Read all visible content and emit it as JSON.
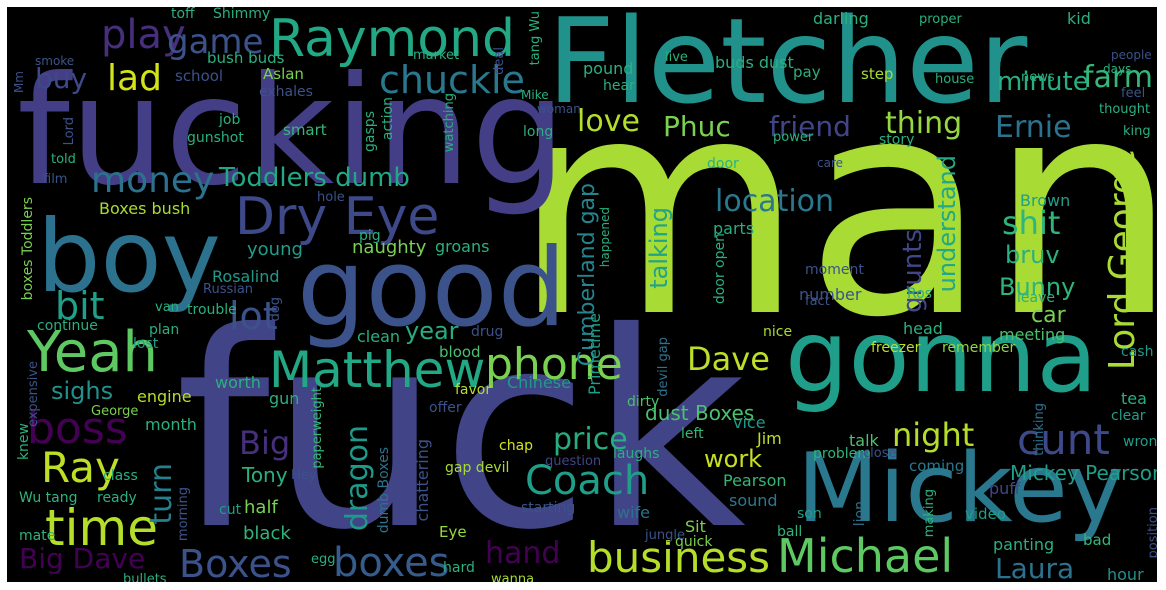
{
  "words": [
    {
      "text": "man",
      "color": "#a8db34"
    },
    {
      "text": "fuck",
      "color": "#414487"
    },
    {
      "text": "fucking",
      "color": "#433e85"
    },
    {
      "text": "Fletcher",
      "color": "#21918c"
    },
    {
      "text": "gonna",
      "color": "#1f9e89"
    },
    {
      "text": "good",
      "color": "#3b528b"
    },
    {
      "text": "boy",
      "color": "#2c728e"
    },
    {
      "text": "Mickey",
      "color": "#2a788e"
    },
    {
      "text": "Raymond",
      "color": "#22a884"
    },
    {
      "text": "Dry Eye",
      "color": "#3e4989"
    },
    {
      "text": "Yeah",
      "color": "#5ec962"
    },
    {
      "text": "Matthew",
      "color": "#22a884"
    },
    {
      "text": "Michael",
      "color": "#5ec962"
    },
    {
      "text": "time",
      "color": "#b5de2b"
    },
    {
      "text": "Coach",
      "color": "#1f9e89"
    },
    {
      "text": "business",
      "color": "#b5de2b"
    },
    {
      "text": "Boxes",
      "color": "#3b528b"
    },
    {
      "text": "boxes",
      "color": "#365c8d"
    },
    {
      "text": "phone",
      "color": "#7ad151"
    },
    {
      "text": "Lord George",
      "color": "#a8db34"
    },
    {
      "text": "cunt",
      "color": "#3e4989"
    },
    {
      "text": "boss",
      "color": "#440154"
    },
    {
      "text": "Ray",
      "color": "#bddf26"
    },
    {
      "text": "play",
      "color": "#472f7d"
    },
    {
      "text": "chuckle",
      "color": "#2a788e"
    },
    {
      "text": "money",
      "color": "#2c728e"
    },
    {
      "text": "lot",
      "color": "#3b528b"
    },
    {
      "text": "bit",
      "color": "#1fa088"
    },
    {
      "text": "lad",
      "color": "#d2e21b"
    },
    {
      "text": "game",
      "color": "#3b528b"
    },
    {
      "text": "Big",
      "color": "#46307e"
    },
    {
      "text": "night",
      "color": "#b5de2b"
    },
    {
      "text": "shit",
      "color": "#2fb47c"
    },
    {
      "text": "Dave",
      "color": "#bddf26"
    },
    {
      "text": "dragon",
      "color": "#1f9a8a"
    },
    {
      "text": "price",
      "color": "#27ad81"
    },
    {
      "text": "farm",
      "color": "#35b779"
    },
    {
      "text": "thing",
      "color": "#95d840"
    },
    {
      "text": "Ernie",
      "color": "#2c728e"
    },
    {
      "text": "hand",
      "color": "#440154"
    },
    {
      "text": "Big Dave",
      "color": "#440154"
    },
    {
      "text": "love",
      "color": "#b5de2b"
    },
    {
      "text": "Phuc",
      "color": "#7ad151"
    },
    {
      "text": "friend",
      "color": "#414487"
    },
    {
      "text": "location",
      "color": "#2a788e"
    },
    {
      "text": "Laura",
      "color": "#2c728e"
    },
    {
      "text": "turn",
      "color": "#277f8e"
    },
    {
      "text": "Toddlers dumb",
      "color": "#22a884"
    },
    {
      "text": "minute",
      "color": "#29af7f"
    },
    {
      "text": "buy",
      "color": "#3e4989"
    },
    {
      "text": "work",
      "color": "#c8e020"
    },
    {
      "text": "year",
      "color": "#27ad81"
    },
    {
      "text": "talking",
      "color": "#20a386"
    },
    {
      "text": "grunts",
      "color": "#404688"
    },
    {
      "text": "understand",
      "color": "#22a884"
    },
    {
      "text": "Bunny",
      "color": "#2fb47c"
    },
    {
      "text": "car",
      "color": "#7ad151"
    },
    {
      "text": "bruv",
      "color": "#2ab07f"
    },
    {
      "text": "sighs",
      "color": "#21918c"
    },
    {
      "text": "Mickey Pearson",
      "color": "#1f9e89"
    },
    {
      "text": "Cumberland gap",
      "color": "#25858e"
    },
    {
      "text": "Primetime",
      "color": "#1f9e89"
    },
    {
      "text": "dust Boxes",
      "color": "#4ac16d"
    },
    {
      "text": "half",
      "color": "#7ad151"
    },
    {
      "text": "black",
      "color": "#2fb47c"
    },
    {
      "text": "Tony",
      "color": "#2ab07f"
    },
    {
      "text": "Rosalind",
      "color": "#1f9a8a"
    },
    {
      "text": "young",
      "color": "#1f9e89"
    },
    {
      "text": "naughty",
      "color": "#7ad151"
    },
    {
      "text": "groans",
      "color": "#2ab07f"
    },
    {
      "text": "Chinese",
      "color": "#1f9a8a"
    },
    {
      "text": "talk",
      "color": "#4ac16d"
    },
    {
      "text": "tea",
      "color": "#2ab07f"
    },
    {
      "text": "wrong",
      "color": "#1f9e89"
    },
    {
      "text": "Brown",
      "color": "#1f9e89"
    },
    {
      "text": "parts",
      "color": "#27ad81"
    },
    {
      "text": "number",
      "color": "#3b528b"
    },
    {
      "text": "moment",
      "color": "#3b528b"
    },
    {
      "text": "head",
      "color": "#2ab07f"
    },
    {
      "text": "meeting",
      "color": "#4ac16d"
    },
    {
      "text": "remember",
      "color": "#8fd744"
    },
    {
      "text": "freezer",
      "color": "#bddf26"
    },
    {
      "text": "cash",
      "color": "#1f9a8a"
    },
    {
      "text": "clear",
      "color": "#1f9e89"
    },
    {
      "text": "thinking",
      "color": "#2c728e"
    },
    {
      "text": "problem",
      "color": "#2fb47c"
    },
    {
      "text": "coming",
      "color": "#2a788e"
    },
    {
      "text": "puff",
      "color": "#404688"
    },
    {
      "text": "lion",
      "color": "#2c728e"
    },
    {
      "text": "making",
      "color": "#2ab07f"
    },
    {
      "text": "video",
      "color": "#1f9e89"
    },
    {
      "text": "position",
      "color": "#3b528b"
    },
    {
      "text": "panting",
      "color": "#2ab07f"
    },
    {
      "text": "bad",
      "color": "#35b779"
    },
    {
      "text": "hour",
      "color": "#21918c"
    },
    {
      "text": "close",
      "color": "#3b528b"
    },
    {
      "text": "vice",
      "color": "#1f9a8a"
    },
    {
      "text": "Jim",
      "color": "#bddf26"
    },
    {
      "text": "Pearson",
      "color": "#35b779"
    },
    {
      "text": "sound",
      "color": "#2a788e"
    },
    {
      "text": "son",
      "color": "#1f9e89"
    },
    {
      "text": "ball",
      "color": "#2fb47c"
    },
    {
      "text": "Sit",
      "color": "#7ad151"
    },
    {
      "text": "wife",
      "color": "#2c728e"
    },
    {
      "text": "quick",
      "color": "#7ad151"
    },
    {
      "text": "jungle",
      "color": "#3b528b"
    },
    {
      "text": "starting",
      "color": "#3b528b"
    },
    {
      "text": "chap",
      "color": "#d2e21b"
    },
    {
      "text": "question",
      "color": "#414487"
    },
    {
      "text": "laughs",
      "color": "#2ab07f"
    },
    {
      "text": "dirty",
      "color": "#4ac16d"
    },
    {
      "text": "left",
      "color": "#35b779"
    },
    {
      "text": "devil gap",
      "color": "#2c728e"
    },
    {
      "text": "gap devil",
      "color": "#a8db34"
    },
    {
      "text": "chattering",
      "color": "#3b528b"
    },
    {
      "text": "Eye",
      "color": "#95d840"
    },
    {
      "text": "hard",
      "color": "#2ab07f"
    },
    {
      "text": "wanna",
      "color": "#a8db34"
    },
    {
      "text": "offer",
      "color": "#3b528b"
    },
    {
      "text": "blood",
      "color": "#4ac16d"
    },
    {
      "text": "drug",
      "color": "#3b528b"
    },
    {
      "text": "favor",
      "color": "#b5de2b"
    },
    {
      "text": "clean",
      "color": "#2ab07f"
    },
    {
      "text": "paperweight",
      "color": "#35b779"
    },
    {
      "text": "dumb Boxes",
      "color": "#2c728e"
    },
    {
      "text": "engine",
      "color": "#b5de2b"
    },
    {
      "text": "worth",
      "color": "#2ab07f"
    },
    {
      "text": "month",
      "color": "#2ab07f"
    },
    {
      "text": "gun",
      "color": "#2ab07f"
    },
    {
      "text": "Hey",
      "color": "#3b528b"
    },
    {
      "text": "cut",
      "color": "#1f9e89"
    },
    {
      "text": "egg",
      "color": "#2ab07f"
    },
    {
      "text": "morning",
      "color": "#3b528b"
    },
    {
      "text": "class",
      "color": "#2ab07f"
    },
    {
      "text": "ready",
      "color": "#2ab07f"
    },
    {
      "text": "bullets",
      "color": "#2ab07f"
    },
    {
      "text": "mate",
      "color": "#2fb47c"
    },
    {
      "text": "Wu tang",
      "color": "#2fb47c"
    },
    {
      "text": "knew",
      "color": "#2ab07f"
    },
    {
      "text": "expensive",
      "color": "#3b528b"
    },
    {
      "text": "George",
      "color": "#7ad151"
    },
    {
      "text": "lost",
      "color": "#1f9e89"
    },
    {
      "text": "plan",
      "color": "#2ab07f"
    },
    {
      "text": "continue",
      "color": "#2ab07f"
    },
    {
      "text": "trouble",
      "color": "#2ab07f"
    },
    {
      "text": "van",
      "color": "#2ab07f"
    },
    {
      "text": "Russian",
      "color": "#3b528b"
    },
    {
      "text": "dog",
      "color": "#3b528b"
    },
    {
      "text": "pig",
      "color": "#2ab07f"
    },
    {
      "text": "hole",
      "color": "#3b528b"
    },
    {
      "text": "boxes Toddlers",
      "color": "#7ad151"
    },
    {
      "text": "Boxes bush",
      "color": "#a8db34"
    },
    {
      "text": "film",
      "color": "#3b528b"
    },
    {
      "text": "told",
      "color": "#2ab07f"
    },
    {
      "text": "Lord",
      "color": "#3b528b"
    },
    {
      "text": "gunshot",
      "color": "#2ab07f"
    },
    {
      "text": "job",
      "color": "#2ab07f"
    },
    {
      "text": "smart",
      "color": "#35b779"
    },
    {
      "text": "gasps",
      "color": "#2ab07f"
    },
    {
      "text": "action",
      "color": "#2ab07f"
    },
    {
      "text": "watching",
      "color": "#2ab07f"
    },
    {
      "text": "exhales",
      "color": "#3b528b"
    },
    {
      "text": "Aslan",
      "color": "#7ad151"
    },
    {
      "text": "school",
      "color": "#3b528b"
    },
    {
      "text": "bush buds",
      "color": "#2ab07f"
    },
    {
      "text": "market",
      "color": "#2ab07f"
    },
    {
      "text": "toff",
      "color": "#2ab07f"
    },
    {
      "text": "Shimmy",
      "color": "#2ab07f"
    },
    {
      "text": "smoke",
      "color": "#3b528b"
    },
    {
      "text": "Mm",
      "color": "#3b528b"
    },
    {
      "text": "tang Wu",
      "color": "#2ab07f"
    },
    {
      "text": "deal",
      "color": "#3b528b"
    },
    {
      "text": "pound",
      "color": "#2ab07f"
    },
    {
      "text": "buds dust",
      "color": "#2ab07f"
    },
    {
      "text": "darling",
      "color": "#2ab07f"
    },
    {
      "text": "proper",
      "color": "#2ab07f"
    },
    {
      "text": "kid",
      "color": "#2ab07f"
    },
    {
      "text": "days",
      "color": "#2ab07f"
    },
    {
      "text": "people",
      "color": "#3b528b"
    },
    {
      "text": "live",
      "color": "#2ab07f"
    },
    {
      "text": "hear",
      "color": "#2ab07f"
    },
    {
      "text": "pay",
      "color": "#2ab07f"
    },
    {
      "text": "step",
      "color": "#a8db34"
    },
    {
      "text": "house",
      "color": "#2ab07f"
    },
    {
      "text": "news",
      "color": "#2ab07f"
    },
    {
      "text": "feel",
      "color": "#3b528b"
    },
    {
      "text": "thought",
      "color": "#2ab07f"
    },
    {
      "text": "king",
      "color": "#2ab07f"
    },
    {
      "text": "Mike",
      "color": "#2ab07f"
    },
    {
      "text": "woman",
      "color": "#3b528b"
    },
    {
      "text": "long",
      "color": "#2ab07f"
    },
    {
      "text": "power",
      "color": "#2ab07f"
    },
    {
      "text": "story",
      "color": "#2ab07f"
    },
    {
      "text": "door",
      "color": "#2ab07f"
    },
    {
      "text": "care",
      "color": "#3b528b"
    },
    {
      "text": "door open",
      "color": "#2ab07f"
    },
    {
      "text": "happened",
      "color": "#2ab07f"
    },
    {
      "text": "fact",
      "color": "#3b528b"
    },
    {
      "text": "Ros",
      "color": "#2ab07f"
    },
    {
      "text": "leave",
      "color": "#2ab07f"
    },
    {
      "text": "nice",
      "color": "#a8db34"
    }
  ]
}
